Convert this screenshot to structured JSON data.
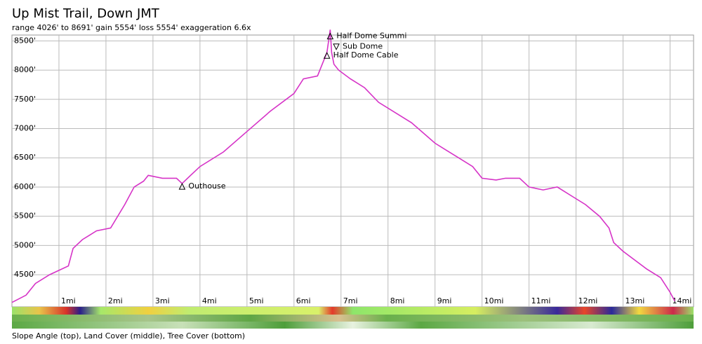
{
  "chart_data": {
    "type": "line",
    "title": "Up Mist Trail, Down JMT",
    "subtitle": "range 4026' to 8691'  gain 5554'  loss 5554'  exaggeration 6.6x",
    "caption": "Slope Angle (top), Land Cover (middle), Tree Cover (bottom)",
    "color": "#d633c7",
    "grid": true,
    "x": [
      0,
      0.3,
      0.5,
      0.8,
      1.2,
      1.3,
      1.5,
      1.8,
      2.1,
      2.4,
      2.6,
      2.8,
      2.9,
      3.2,
      3.5,
      3.62,
      3.8,
      4.0,
      4.5,
      5.0,
      5.5,
      6.0,
      6.2,
      6.5,
      6.6,
      6.7,
      6.77,
      6.8,
      6.85,
      6.95,
      7.2,
      7.5,
      7.8,
      8.5,
      9.0,
      9.5,
      9.8,
      10.0,
      10.3,
      10.5,
      10.8,
      11.0,
      11.3,
      11.6,
      11.9,
      12.2,
      12.5,
      12.7,
      12.8,
      13.0,
      13.5,
      13.8,
      14.0,
      14.1
    ],
    "values": [
      4026,
      4150,
      4350,
      4500,
      4650,
      4950,
      5100,
      5250,
      5300,
      5700,
      6000,
      6100,
      6200,
      6150,
      6150,
      6060,
      6200,
      6350,
      6600,
      6950,
      7300,
      7600,
      7850,
      7900,
      8100,
      8300,
      8691,
      8300,
      8100,
      8000,
      7850,
      7700,
      7450,
      7100,
      6750,
      6500,
      6350,
      6150,
      6120,
      6150,
      6150,
      6000,
      5950,
      6000,
      5850,
      5700,
      5500,
      5300,
      5050,
      4900,
      4600,
      4450,
      4200,
      4050
    ],
    "xlim": [
      0,
      14.5
    ],
    "ylim": [
      3950,
      8600
    ],
    "xticks": [
      {
        "value": 1,
        "label": "1mi"
      },
      {
        "value": 2,
        "label": "2mi"
      },
      {
        "value": 3,
        "label": "3mi"
      },
      {
        "value": 4,
        "label": "4mi"
      },
      {
        "value": 5,
        "label": "5mi"
      },
      {
        "value": 6,
        "label": "6mi"
      },
      {
        "value": 7,
        "label": "7mi"
      },
      {
        "value": 8,
        "label": "8mi"
      },
      {
        "value": 9,
        "label": "9mi"
      },
      {
        "value": 10,
        "label": "10mi"
      },
      {
        "value": 11,
        "label": "11mi"
      },
      {
        "value": 12,
        "label": "12mi"
      },
      {
        "value": 13,
        "label": "13mi"
      },
      {
        "value": 14,
        "label": "14mi"
      }
    ],
    "yticks": [
      {
        "value": 4500,
        "label": "4500'"
      },
      {
        "value": 5000,
        "label": "5000'"
      },
      {
        "value": 5500,
        "label": "5500'"
      },
      {
        "value": 6000,
        "label": "6000'"
      },
      {
        "value": 6500,
        "label": "6500'"
      },
      {
        "value": 7000,
        "label": "7000'"
      },
      {
        "value": 7500,
        "label": "7500'"
      },
      {
        "value": 8000,
        "label": "8000'"
      },
      {
        "value": 8500,
        "label": "8500'"
      }
    ],
    "annotations": [
      {
        "label": "Half Dome Summi",
        "x": 6.77,
        "y": 8580,
        "direction": "up"
      },
      {
        "label": "Sub Dome",
        "x": 6.9,
        "y": 8400,
        "direction": "down"
      },
      {
        "label": "Half Dome Cable",
        "x": 6.7,
        "y": 8250,
        "direction": "up"
      },
      {
        "label": "Outhouse",
        "x": 3.62,
        "y": 6010,
        "direction": "up"
      }
    ]
  }
}
